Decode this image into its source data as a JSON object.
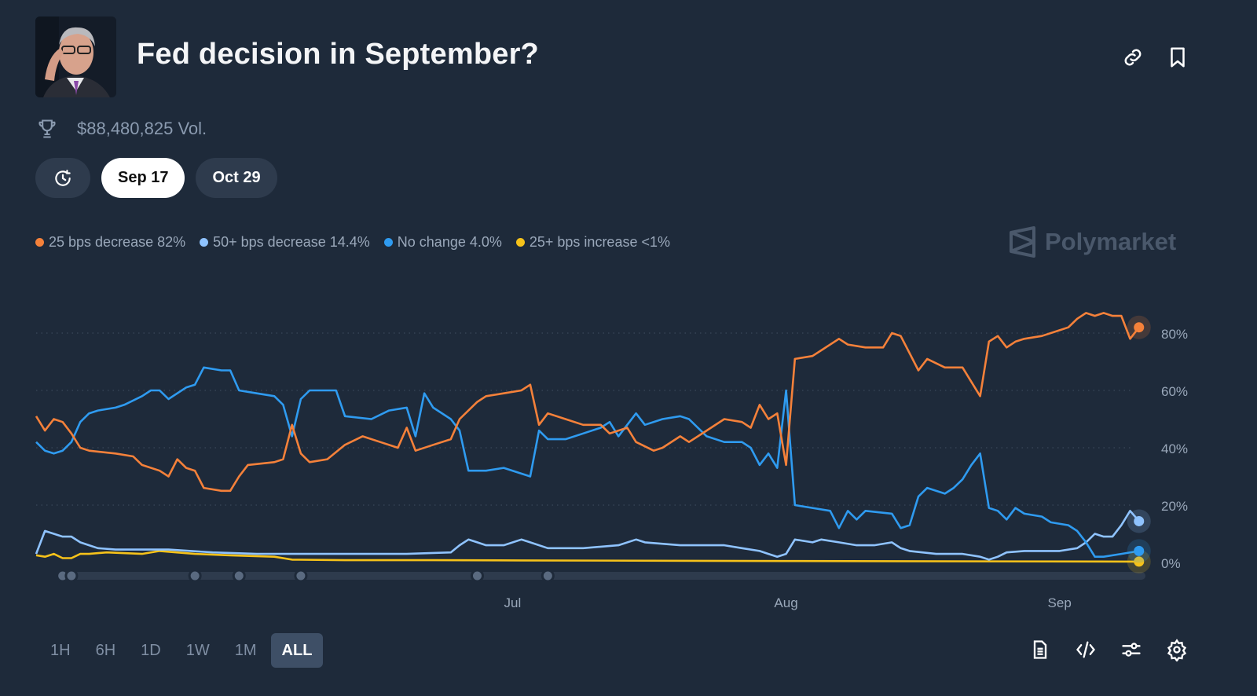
{
  "header": {
    "title": "Fed decision in September?",
    "volume": "$88,480,825 Vol.",
    "icons": [
      "link-icon",
      "bookmark-icon"
    ]
  },
  "date_tabs": [
    {
      "label": "",
      "icon": "history-clock-icon"
    },
    {
      "label": "Sep 17",
      "active": true
    },
    {
      "label": "Oct 29"
    }
  ],
  "brand": "Polymarket",
  "legend": [
    {
      "label": "25 bps decrease 82%",
      "color": "#f5813a"
    },
    {
      "label": "50+ bps decrease 14.4%",
      "color": "#8fc3ff"
    },
    {
      "label": "No change 4.0%",
      "color": "#2f9bf0"
    },
    {
      "label": "25+ bps increase <1%",
      "color": "#f6c21a"
    }
  ],
  "ranges": [
    {
      "label": "1H"
    },
    {
      "label": "6H"
    },
    {
      "label": "1D"
    },
    {
      "label": "1W"
    },
    {
      "label": "1M"
    },
    {
      "label": "ALL",
      "active": true
    }
  ],
  "tools": [
    "document-icon",
    "embed-code-icon",
    "sliders-icon",
    "settings-gear-icon"
  ],
  "chart_data": {
    "type": "line",
    "x_labels": [
      {
        "date": "07-01",
        "label": "Jul"
      },
      {
        "date": "08-01",
        "label": "Aug"
      },
      {
        "date": "09-01",
        "label": "Sep"
      }
    ],
    "x_range": [
      "05-08",
      "09-10"
    ],
    "y_ticks": [
      0,
      20,
      40,
      60,
      80
    ],
    "y_tick_labels": [
      "0%",
      "20%",
      "40%",
      "60%",
      "80%"
    ],
    "ylim": [
      0,
      100
    ],
    "y_axis_side": "right",
    "grid": "horizontal dotted",
    "series": [
      {
        "name": "25 bps decrease",
        "color": "#f5813a",
        "points": [
          [
            "05-08",
            51
          ],
          [
            "05-09",
            46
          ],
          [
            "05-10",
            50
          ],
          [
            "05-11",
            49
          ],
          [
            "05-12",
            45
          ],
          [
            "05-13",
            40
          ],
          [
            "05-14",
            39
          ],
          [
            "05-17",
            38
          ],
          [
            "05-19",
            37
          ],
          [
            "05-20",
            34
          ],
          [
            "05-22",
            32
          ],
          [
            "05-23",
            30
          ],
          [
            "05-24",
            36
          ],
          [
            "05-25",
            33
          ],
          [
            "05-26",
            32
          ],
          [
            "05-27",
            26
          ],
          [
            "05-29",
            25
          ],
          [
            "05-30",
            25
          ],
          [
            "05-31",
            30
          ],
          [
            "06-01",
            34
          ],
          [
            "06-04",
            35
          ],
          [
            "06-05",
            36
          ],
          [
            "06-06",
            48
          ],
          [
            "06-07",
            38
          ],
          [
            "06-08",
            35
          ],
          [
            "06-10",
            36
          ],
          [
            "06-12",
            41
          ],
          [
            "06-14",
            44
          ],
          [
            "06-16",
            42
          ],
          [
            "06-18",
            40
          ],
          [
            "06-19",
            47
          ],
          [
            "06-20",
            39
          ],
          [
            "06-22",
            41
          ],
          [
            "06-24",
            43
          ],
          [
            "06-25",
            50
          ],
          [
            "06-27",
            56
          ],
          [
            "06-28",
            58
          ],
          [
            "06-30",
            59
          ],
          [
            "07-02",
            60
          ],
          [
            "07-03",
            62
          ],
          [
            "07-04",
            48
          ],
          [
            "07-05",
            52
          ],
          [
            "07-07",
            50
          ],
          [
            "07-09",
            48
          ],
          [
            "07-11",
            48
          ],
          [
            "07-12",
            45
          ],
          [
            "07-14",
            47
          ],
          [
            "07-15",
            42
          ],
          [
            "07-17",
            39
          ],
          [
            "07-18",
            40
          ],
          [
            "07-20",
            44
          ],
          [
            "07-21",
            42
          ],
          [
            "07-23",
            46
          ],
          [
            "07-25",
            50
          ],
          [
            "07-27",
            49
          ],
          [
            "07-28",
            47
          ],
          [
            "07-29",
            55
          ],
          [
            "07-30",
            50
          ],
          [
            "07-31",
            52
          ],
          [
            "08-01",
            34
          ],
          [
            "08-02",
            71
          ],
          [
            "08-04",
            72
          ],
          [
            "08-05",
            74
          ],
          [
            "08-07",
            78
          ],
          [
            "08-08",
            76
          ],
          [
            "08-10",
            75
          ],
          [
            "08-12",
            75
          ],
          [
            "08-13",
            80
          ],
          [
            "08-14",
            79
          ],
          [
            "08-15",
            73
          ],
          [
            "08-16",
            67
          ],
          [
            "08-17",
            71
          ],
          [
            "08-19",
            68
          ],
          [
            "08-21",
            68
          ],
          [
            "08-22",
            63
          ],
          [
            "08-23",
            58
          ],
          [
            "08-24",
            77
          ],
          [
            "08-25",
            79
          ],
          [
            "08-26",
            75
          ],
          [
            "08-27",
            77
          ],
          [
            "08-28",
            78
          ],
          [
            "08-30",
            79
          ],
          [
            "09-01",
            81
          ],
          [
            "09-02",
            82
          ],
          [
            "09-03",
            85
          ],
          [
            "09-04",
            87
          ],
          [
            "09-05",
            86
          ],
          [
            "09-06",
            87
          ],
          [
            "09-07",
            86
          ],
          [
            "09-08",
            86
          ],
          [
            "09-09",
            78
          ],
          [
            "09-10",
            82
          ]
        ]
      },
      {
        "name": "50+ bps decrease",
        "color": "#8fc3ff",
        "points": [
          [
            "05-08",
            3
          ],
          [
            "05-09",
            11
          ],
          [
            "05-10",
            10
          ],
          [
            "05-11",
            9
          ],
          [
            "05-12",
            9
          ],
          [
            "05-13",
            7
          ],
          [
            "05-14",
            6
          ],
          [
            "05-15",
            5
          ],
          [
            "05-17",
            4.5
          ],
          [
            "05-23",
            4.5
          ],
          [
            "05-28",
            3.5
          ],
          [
            "06-02",
            3
          ],
          [
            "06-12",
            3
          ],
          [
            "06-19",
            3
          ],
          [
            "06-24",
            3.5
          ],
          [
            "06-25",
            6
          ],
          [
            "06-26",
            8
          ],
          [
            "06-27",
            7
          ],
          [
            "06-28",
            6
          ],
          [
            "06-30",
            6
          ],
          [
            "07-02",
            8
          ],
          [
            "07-03",
            7
          ],
          [
            "07-05",
            5
          ],
          [
            "07-09",
            5
          ],
          [
            "07-13",
            6
          ],
          [
            "07-15",
            8
          ],
          [
            "07-16",
            7
          ],
          [
            "07-20",
            6
          ],
          [
            "07-25",
            6
          ],
          [
            "07-27",
            5
          ],
          [
            "07-29",
            4
          ],
          [
            "07-30",
            3
          ],
          [
            "07-31",
            2
          ],
          [
            "08-01",
            3
          ],
          [
            "08-02",
            8
          ],
          [
            "08-04",
            7
          ],
          [
            "08-05",
            8
          ],
          [
            "08-07",
            7
          ],
          [
            "08-09",
            6
          ],
          [
            "08-11",
            6
          ],
          [
            "08-13",
            7
          ],
          [
            "08-14",
            5
          ],
          [
            "08-15",
            4
          ],
          [
            "08-18",
            3
          ],
          [
            "08-21",
            3
          ],
          [
            "08-23",
            2
          ],
          [
            "08-24",
            1
          ],
          [
            "08-25",
            2
          ],
          [
            "08-26",
            3.5
          ],
          [
            "08-28",
            4
          ],
          [
            "08-30",
            4
          ],
          [
            "09-01",
            4
          ],
          [
            "09-03",
            5
          ],
          [
            "09-04",
            7
          ],
          [
            "09-05",
            10
          ],
          [
            "09-06",
            9
          ],
          [
            "09-07",
            9
          ],
          [
            "09-08",
            13
          ],
          [
            "09-09",
            18
          ],
          [
            "09-10",
            14.4
          ]
        ]
      },
      {
        "name": "No change",
        "color": "#2f9bf0",
        "points": [
          [
            "05-08",
            42
          ],
          [
            "05-09",
            39
          ],
          [
            "05-10",
            38
          ],
          [
            "05-11",
            39
          ],
          [
            "05-12",
            42
          ],
          [
            "05-13",
            49
          ],
          [
            "05-14",
            52
          ],
          [
            "05-15",
            53
          ],
          [
            "05-17",
            54
          ],
          [
            "05-18",
            55
          ],
          [
            "05-20",
            58
          ],
          [
            "05-21",
            60
          ],
          [
            "05-22",
            60
          ],
          [
            "05-23",
            57
          ],
          [
            "05-25",
            61
          ],
          [
            "05-26",
            62
          ],
          [
            "05-27",
            68
          ],
          [
            "05-29",
            67
          ],
          [
            "05-30",
            67
          ],
          [
            "05-31",
            60
          ],
          [
            "06-02",
            59
          ],
          [
            "06-04",
            58
          ],
          [
            "06-05",
            55
          ],
          [
            "06-06",
            44
          ],
          [
            "06-07",
            57
          ],
          [
            "06-08",
            60
          ],
          [
            "06-10",
            60
          ],
          [
            "06-11",
            60
          ],
          [
            "06-12",
            51
          ],
          [
            "06-15",
            50
          ],
          [
            "06-17",
            53
          ],
          [
            "06-19",
            54
          ],
          [
            "06-20",
            44
          ],
          [
            "06-21",
            59
          ],
          [
            "06-22",
            54
          ],
          [
            "06-24",
            50
          ],
          [
            "06-25",
            46
          ],
          [
            "06-26",
            32
          ],
          [
            "06-28",
            32
          ],
          [
            "06-30",
            33
          ],
          [
            "07-02",
            31
          ],
          [
            "07-03",
            30
          ],
          [
            "07-04",
            46
          ],
          [
            "07-05",
            43
          ],
          [
            "07-07",
            43
          ],
          [
            "07-09",
            45
          ],
          [
            "07-11",
            47
          ],
          [
            "07-12",
            49
          ],
          [
            "07-13",
            44
          ],
          [
            "07-15",
            52
          ],
          [
            "07-16",
            48
          ],
          [
            "07-18",
            50
          ],
          [
            "07-20",
            51
          ],
          [
            "07-21",
            50
          ],
          [
            "07-23",
            44
          ],
          [
            "07-25",
            42
          ],
          [
            "07-27",
            42
          ],
          [
            "07-28",
            40
          ],
          [
            "07-29",
            34
          ],
          [
            "07-30",
            38
          ],
          [
            "07-31",
            33
          ],
          [
            "08-01",
            60
          ],
          [
            "08-02",
            20
          ],
          [
            "08-04",
            19
          ],
          [
            "08-06",
            18
          ],
          [
            "08-07",
            12
          ],
          [
            "08-08",
            18
          ],
          [
            "08-09",
            15
          ],
          [
            "08-10",
            18
          ],
          [
            "08-13",
            17
          ],
          [
            "08-14",
            12
          ],
          [
            "08-15",
            13
          ],
          [
            "08-16",
            23
          ],
          [
            "08-17",
            26
          ],
          [
            "08-19",
            24
          ],
          [
            "08-20",
            26
          ],
          [
            "08-21",
            29
          ],
          [
            "08-22",
            34
          ],
          [
            "08-23",
            38
          ],
          [
            "08-24",
            19
          ],
          [
            "08-25",
            18
          ],
          [
            "08-26",
            15
          ],
          [
            "08-27",
            19
          ],
          [
            "08-28",
            17
          ],
          [
            "08-30",
            16
          ],
          [
            "08-31",
            14
          ],
          [
            "09-02",
            13
          ],
          [
            "09-03",
            11
          ],
          [
            "09-04",
            7
          ],
          [
            "09-05",
            2
          ],
          [
            "09-06",
            2
          ],
          [
            "09-08",
            3
          ],
          [
            "09-10",
            4
          ]
        ]
      },
      {
        "name": "25+ bps increase",
        "color": "#f6c21a",
        "points": [
          [
            "05-08",
            2.5
          ],
          [
            "05-09",
            2
          ],
          [
            "05-10",
            3
          ],
          [
            "05-11",
            1.5
          ],
          [
            "05-12",
            1.5
          ],
          [
            "05-13",
            3
          ],
          [
            "05-14",
            3
          ],
          [
            "05-16",
            3.5
          ],
          [
            "05-20",
            3
          ],
          [
            "05-22",
            4
          ],
          [
            "05-26",
            3
          ],
          [
            "05-30",
            2.5
          ],
          [
            "06-04",
            2
          ],
          [
            "06-06",
            1
          ],
          [
            "06-12",
            0.8
          ],
          [
            "06-22",
            0.8
          ],
          [
            "07-02",
            0.7
          ],
          [
            "08-01",
            0.5
          ],
          [
            "09-10",
            0.3
          ]
        ]
      }
    ],
    "event_markers": [
      "05-11",
      "05-12",
      "05-26",
      "05-31",
      "06-07",
      "06-27",
      "07-05"
    ]
  }
}
